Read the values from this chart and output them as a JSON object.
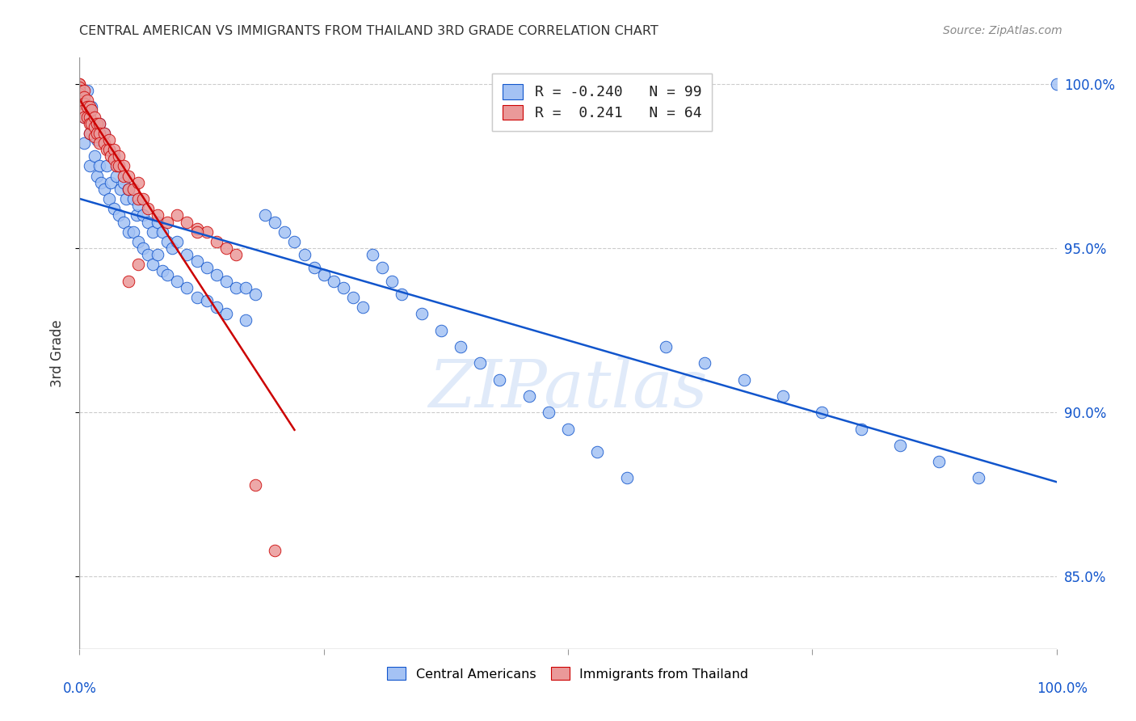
{
  "title": "CENTRAL AMERICAN VS IMMIGRANTS FROM THAILAND 3RD GRADE CORRELATION CHART",
  "source": "Source: ZipAtlas.com",
  "ylabel": "3rd Grade",
  "ytick_labels": [
    "85.0%",
    "90.0%",
    "95.0%",
    "100.0%"
  ],
  "ytick_values": [
    0.85,
    0.9,
    0.95,
    1.0
  ],
  "xlim": [
    0.0,
    1.0
  ],
  "ylim": [
    0.828,
    1.008
  ],
  "blue_color": "#a4c2f4",
  "pink_color": "#ea9999",
  "blue_line_color": "#1155cc",
  "pink_line_color": "#cc0000",
  "watermark": "ZIPatlas",
  "blue_R": -0.24,
  "blue_N": 99,
  "pink_R": 0.241,
  "pink_N": 64,
  "legend_blue_R": "-0.240",
  "legend_blue_N": "99",
  "legend_pink_R": "0.241",
  "legend_pink_N": "64",
  "blue_scatter_x": [
    0.005,
    0.005,
    0.008,
    0.01,
    0.01,
    0.012,
    0.015,
    0.015,
    0.018,
    0.018,
    0.02,
    0.02,
    0.022,
    0.025,
    0.025,
    0.028,
    0.03,
    0.03,
    0.032,
    0.035,
    0.035,
    0.038,
    0.04,
    0.04,
    0.042,
    0.045,
    0.045,
    0.048,
    0.05,
    0.05,
    0.055,
    0.055,
    0.058,
    0.06,
    0.06,
    0.065,
    0.065,
    0.07,
    0.07,
    0.075,
    0.075,
    0.08,
    0.08,
    0.085,
    0.085,
    0.09,
    0.09,
    0.095,
    0.1,
    0.1,
    0.11,
    0.11,
    0.12,
    0.12,
    0.13,
    0.13,
    0.14,
    0.14,
    0.15,
    0.15,
    0.16,
    0.17,
    0.17,
    0.18,
    0.19,
    0.2,
    0.21,
    0.22,
    0.23,
    0.24,
    0.25,
    0.26,
    0.27,
    0.28,
    0.29,
    0.3,
    0.31,
    0.32,
    0.33,
    0.35,
    0.37,
    0.39,
    0.41,
    0.43,
    0.46,
    0.48,
    0.5,
    0.53,
    0.56,
    0.6,
    0.64,
    0.68,
    0.72,
    0.76,
    0.8,
    0.84,
    0.88,
    0.92,
    1.0
  ],
  "blue_scatter_y": [
    0.99,
    0.982,
    0.998,
    0.985,
    0.975,
    0.993,
    0.988,
    0.978,
    0.983,
    0.972,
    0.988,
    0.975,
    0.97,
    0.985,
    0.968,
    0.975,
    0.98,
    0.965,
    0.97,
    0.978,
    0.962,
    0.972,
    0.975,
    0.96,
    0.968,
    0.97,
    0.958,
    0.965,
    0.968,
    0.955,
    0.965,
    0.955,
    0.96,
    0.963,
    0.952,
    0.96,
    0.95,
    0.958,
    0.948,
    0.955,
    0.945,
    0.958,
    0.948,
    0.955,
    0.943,
    0.952,
    0.942,
    0.95,
    0.952,
    0.94,
    0.948,
    0.938,
    0.946,
    0.935,
    0.944,
    0.934,
    0.942,
    0.932,
    0.94,
    0.93,
    0.938,
    0.938,
    0.928,
    0.936,
    0.96,
    0.958,
    0.955,
    0.952,
    0.948,
    0.944,
    0.942,
    0.94,
    0.938,
    0.935,
    0.932,
    0.948,
    0.944,
    0.94,
    0.936,
    0.93,
    0.925,
    0.92,
    0.915,
    0.91,
    0.905,
    0.9,
    0.895,
    0.888,
    0.88,
    0.92,
    0.915,
    0.91,
    0.905,
    0.9,
    0.895,
    0.89,
    0.885,
    0.88,
    1.0
  ],
  "pink_scatter_x": [
    0.0,
    0.0,
    0.0,
    0.0,
    0.0,
    0.0,
    0.0,
    0.0,
    0.005,
    0.005,
    0.005,
    0.005,
    0.005,
    0.008,
    0.008,
    0.008,
    0.01,
    0.01,
    0.01,
    0.01,
    0.012,
    0.012,
    0.015,
    0.015,
    0.015,
    0.018,
    0.018,
    0.02,
    0.02,
    0.02,
    0.025,
    0.025,
    0.028,
    0.03,
    0.03,
    0.032,
    0.035,
    0.035,
    0.038,
    0.04,
    0.04,
    0.045,
    0.045,
    0.05,
    0.05,
    0.055,
    0.06,
    0.06,
    0.065,
    0.07,
    0.08,
    0.09,
    0.1,
    0.11,
    0.12,
    0.13,
    0.14,
    0.15,
    0.16,
    0.18,
    0.2,
    0.12,
    0.06,
    0.05
  ],
  "pink_scatter_y": [
    1.0,
    1.0,
    0.999,
    0.998,
    0.997,
    0.996,
    0.995,
    0.994,
    0.998,
    0.996,
    0.994,
    0.992,
    0.99,
    0.995,
    0.993,
    0.99,
    0.993,
    0.99,
    0.988,
    0.985,
    0.992,
    0.988,
    0.99,
    0.987,
    0.984,
    0.988,
    0.985,
    0.988,
    0.985,
    0.982,
    0.985,
    0.982,
    0.98,
    0.983,
    0.98,
    0.978,
    0.98,
    0.977,
    0.975,
    0.978,
    0.975,
    0.975,
    0.972,
    0.972,
    0.968,
    0.968,
    0.97,
    0.965,
    0.965,
    0.962,
    0.96,
    0.958,
    0.96,
    0.958,
    0.956,
    0.955,
    0.952,
    0.95,
    0.948,
    0.878,
    0.858,
    0.955,
    0.945,
    0.94
  ]
}
